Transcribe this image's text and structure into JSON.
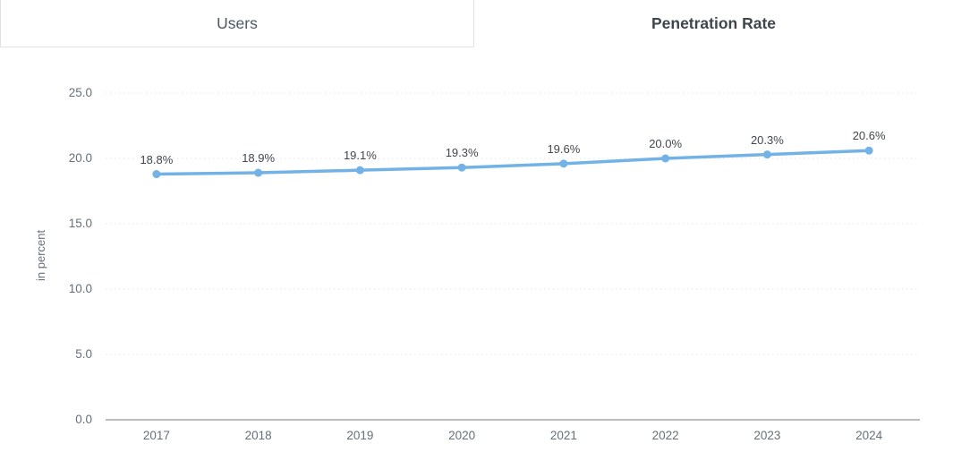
{
  "tabs": [
    {
      "label": "Users",
      "active": false
    },
    {
      "label": "Penetration Rate",
      "active": true
    }
  ],
  "chart_data": {
    "type": "line",
    "categories": [
      "2017",
      "2018",
      "2019",
      "2020",
      "2021",
      "2022",
      "2023",
      "2024"
    ],
    "series": [
      {
        "name": "Penetration Rate",
        "values": [
          18.8,
          18.9,
          19.1,
          19.3,
          19.6,
          20.0,
          20.3,
          20.6
        ]
      }
    ],
    "data_labels": [
      "18.8%",
      "18.9%",
      "19.1%",
      "19.3%",
      "19.6%",
      "20.0%",
      "20.3%",
      "20.6%"
    ],
    "title": "",
    "xlabel": "",
    "ylabel": "in percent",
    "ylim": [
      0,
      25
    ],
    "ytick_step": 5,
    "ytick_labels": [
      "0.0",
      "5.0",
      "10.0",
      "15.0",
      "20.0",
      "25.0"
    ],
    "grid": "horizontal-dotted",
    "legend": "none",
    "colors": {
      "line": "#73b2e6",
      "marker": "#73b2e6",
      "gridline": "#e4e4e4",
      "axis_line": "#a6a6a6",
      "tick_text": "#65707a",
      "data_label_text": "#42474e"
    }
  }
}
